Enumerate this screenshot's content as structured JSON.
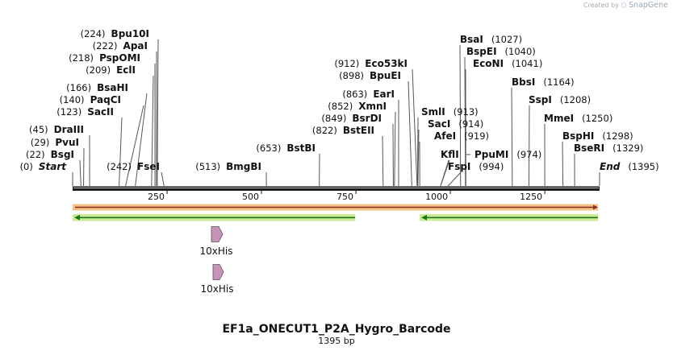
{
  "credit": {
    "prefix": "Created by",
    "brand": "SnapGene",
    "logo_icon": "snapgene-logo-icon"
  },
  "sequence": {
    "name": "EF1a_ONECUT1_P2A_Hygro_Barcode",
    "length_label": "1395 bp",
    "length": 1395,
    "ticks": [
      {
        "pos": 250,
        "label": "250"
      },
      {
        "pos": 500,
        "label": "500"
      },
      {
        "pos": 750,
        "label": "750"
      },
      {
        "pos": 1000,
        "label": "1000"
      },
      {
        "pos": 1250,
        "label": "1250"
      }
    ]
  },
  "sites": [
    {
      "name": "Bpu10I",
      "pos": "(224)",
      "bp": 224,
      "side": "left"
    },
    {
      "name": "ApaI",
      "pos": "(222)",
      "bp": 222,
      "side": "left"
    },
    {
      "name": "PspOMI",
      "pos": "(218)",
      "bp": 218,
      "side": "left"
    },
    {
      "name": "EclI",
      "pos": "(209)",
      "bp": 209,
      "side": "left"
    },
    {
      "name": "BsaHI",
      "pos": "(166)",
      "bp": 166,
      "side": "left"
    },
    {
      "name": "PaqCI",
      "pos": "(140)",
      "bp": 140,
      "side": "left"
    },
    {
      "name": "SacII",
      "pos": "(123)",
      "bp": 123,
      "side": "left"
    },
    {
      "name": "DraIII",
      "pos": "(45)",
      "bp": 45,
      "side": "left"
    },
    {
      "name": "PvuI",
      "pos": "(29)",
      "bp": 29,
      "side": "left"
    },
    {
      "name": "BsgI",
      "pos": "(22)",
      "bp": 22,
      "side": "left"
    },
    {
      "name": "Start",
      "pos": "(0)",
      "bp": 0,
      "side": "left",
      "italic": true
    },
    {
      "name": "FseI",
      "pos": "(242)",
      "bp": 242,
      "side": "left"
    },
    {
      "name": "BmgBI",
      "pos": "(513)",
      "bp": 513,
      "side": "left"
    },
    {
      "name": "BstBI",
      "pos": "(653)",
      "bp": 653,
      "side": "left"
    },
    {
      "name": "Eco53kI",
      "pos": "(912)",
      "bp": 912,
      "side": "left"
    },
    {
      "name": "BpuEI",
      "pos": "(898)",
      "bp": 898,
      "side": "left"
    },
    {
      "name": "EarI",
      "pos": "(863)",
      "bp": 863,
      "side": "left"
    },
    {
      "name": "XmnI",
      "pos": "(852)",
      "bp": 852,
      "side": "left"
    },
    {
      "name": "BsrDI",
      "pos": "(849)",
      "bp": 849,
      "side": "left"
    },
    {
      "name": "BstEII",
      "pos": "(822)",
      "bp": 822,
      "side": "left"
    },
    {
      "name": "SmlI",
      "pos": "(913)",
      "bp": 913,
      "side": "right"
    },
    {
      "name": "SacI",
      "pos": "(914)",
      "bp": 914,
      "side": "right"
    },
    {
      "name": "AfeI",
      "pos": "(919)",
      "bp": 919,
      "side": "right"
    },
    {
      "name": "KflI",
      "pos": "",
      "bp": 974,
      "side": "right"
    },
    {
      "name": "PpuMI",
      "pos": "(974)",
      "bp": 974,
      "side": "right"
    },
    {
      "name": "FspI",
      "pos": "(994)",
      "bp": 994,
      "side": "right"
    },
    {
      "name": "BsaI",
      "pos": "(1027)",
      "bp": 1027,
      "side": "right"
    },
    {
      "name": "BspEI",
      "pos": "(1040)",
      "bp": 1040,
      "side": "right"
    },
    {
      "name": "EcoNI",
      "pos": "(1041)",
      "bp": 1041,
      "side": "right"
    },
    {
      "name": "BbsI",
      "pos": "(1164)",
      "bp": 1164,
      "side": "right"
    },
    {
      "name": "SspI",
      "pos": "(1208)",
      "bp": 1208,
      "side": "right"
    },
    {
      "name": "MmeI",
      "pos": "(1250)",
      "bp": 1250,
      "side": "right"
    },
    {
      "name": "BspHI",
      "pos": "(1298)",
      "bp": 1298,
      "side": "right"
    },
    {
      "name": "BseRI",
      "pos": "(1329)",
      "bp": 1329,
      "side": "right"
    },
    {
      "name": "End",
      "pos": "(1395)",
      "bp": 1395,
      "side": "right",
      "italic": true
    }
  ],
  "features": [
    {
      "label": "10xHis",
      "color": "#c993b8"
    },
    {
      "label": "10xHis",
      "color": "#c993b8"
    }
  ],
  "colors": {
    "backbone": "#1a1a1a",
    "orf_highlight": "#f3c384",
    "orf_line": "#8b2a2a",
    "green_arrow_fill": "#cdea98",
    "green_arrow_line": "#1a7a1a",
    "feature_pink": "#c993b8"
  }
}
